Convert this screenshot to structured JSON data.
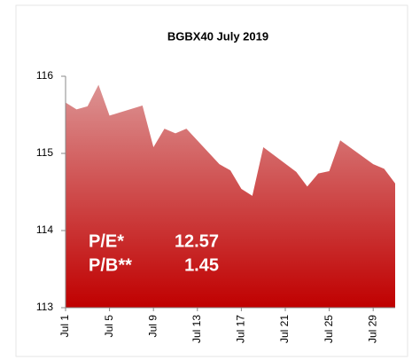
{
  "chart_data": {
    "type": "area",
    "title": "BGBX40 July 2019",
    "x": [
      "Jul 1",
      "Jul 2",
      "Jul 3",
      "Jul 4",
      "Jul 5",
      "Jul 8",
      "Jul 9",
      "Jul 10",
      "Jul 11",
      "Jul 12",
      "Jul 15",
      "Jul 16",
      "Jul 17",
      "Jul 18",
      "Jul 19",
      "Jul 22",
      "Jul 23",
      "Jul 24",
      "Jul 25",
      "Jul 26",
      "Jul 29",
      "Jul 30",
      "Jul 31"
    ],
    "values": [
      115.66,
      115.57,
      115.61,
      115.89,
      115.49,
      115.62,
      115.08,
      115.32,
      115.26,
      115.32,
      114.86,
      114.78,
      114.54,
      114.45,
      115.08,
      114.76,
      114.57,
      114.74,
      114.77,
      115.17,
      114.86,
      114.8,
      114.61
    ],
    "xticks": [
      "Jul 1",
      "Jul 5",
      "Jul 9",
      "Jul 13",
      "Jul 17",
      "Jul 21",
      "Jul 25",
      "Jul 29"
    ],
    "ylim": [
      113,
      116
    ],
    "yticks": [
      113,
      114,
      115,
      116
    ],
    "color_top": "#dc9393",
    "color_bottom": "#c00000",
    "annotations": [
      {
        "label": "P/E*",
        "value": 12.57
      },
      {
        "label": "P/B**",
        "value": 1.45
      }
    ]
  }
}
